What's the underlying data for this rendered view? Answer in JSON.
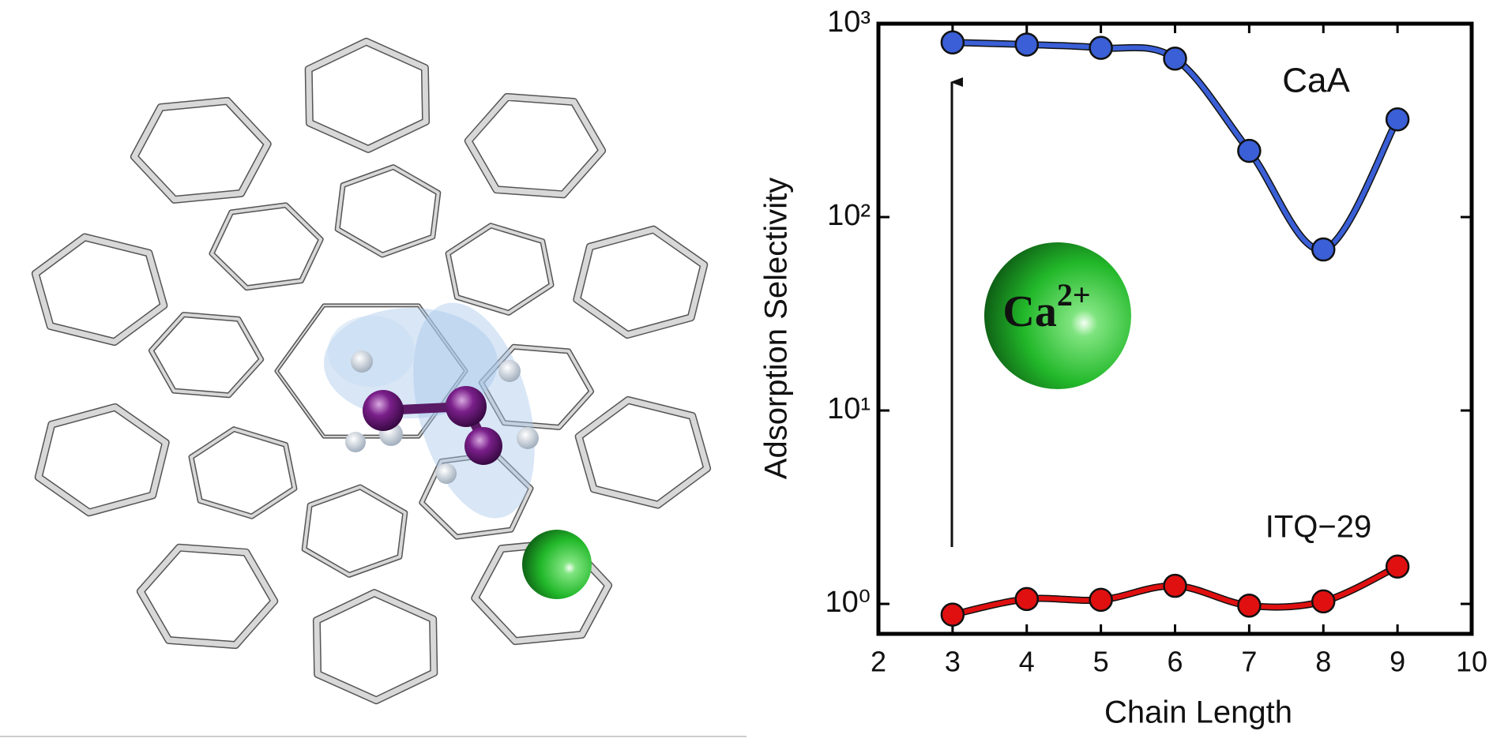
{
  "chart_data": {
    "type": "line",
    "x_label": "Chain Length",
    "y_label": "Adsorption Selectivity",
    "x": [
      3,
      4,
      5,
      6,
      7,
      8,
      9
    ],
    "series": [
      {
        "name": "CaA",
        "color": "#3a5fd6",
        "values": [
          800,
          780,
          750,
          660,
          220,
          68,
          320
        ]
      },
      {
        "name": "ITQ−29",
        "color": "#e01010",
        "values": [
          0.88,
          1.06,
          1.05,
          1.24,
          0.98,
          1.03,
          1.56
        ]
      }
    ],
    "log_scale_y": true,
    "xlim": [
      2,
      10
    ],
    "xticks": [
      2,
      3,
      4,
      5,
      6,
      7,
      8,
      9,
      10
    ],
    "ylim": [
      0.7,
      1000
    ],
    "yticks": [
      {
        "value": 1,
        "label": "10⁰"
      },
      {
        "value": 10,
        "label": "10¹"
      },
      {
        "value": 100,
        "label": "10²"
      },
      {
        "value": 1000,
        "label": "10³"
      }
    ],
    "ion": {
      "symbol": "Ca",
      "charge": "2+"
    }
  }
}
